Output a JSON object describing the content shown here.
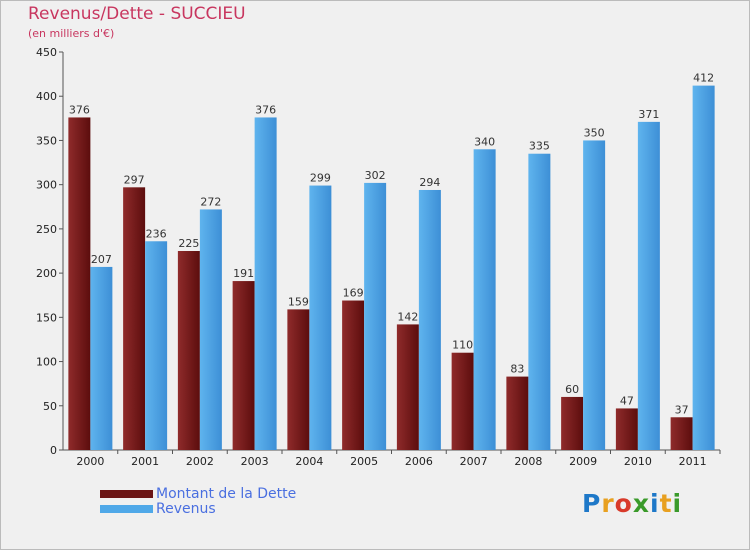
{
  "header": {
    "title": "Revenus/Dette - SUCCIEU",
    "subtitle": "(en milliers d'€)"
  },
  "chart_data": {
    "type": "bar",
    "categories": [
      "2000",
      "2001",
      "2002",
      "2003",
      "2004",
      "2005",
      "2006",
      "2007",
      "2008",
      "2009",
      "2010",
      "2011"
    ],
    "series": [
      {
        "name": "Montant de la Dette",
        "values": [
          376,
          297,
          225,
          191,
          159,
          169,
          142,
          110,
          83,
          60,
          47,
          37
        ],
        "color": "#7a1e1e"
      },
      {
        "name": "Revenus",
        "values": [
          207,
          236,
          272,
          376,
          299,
          302,
          294,
          340,
          335,
          350,
          371,
          412
        ],
        "color": "#4fa8e8"
      }
    ],
    "yticks": [
      0,
      50,
      100,
      150,
      200,
      250,
      300,
      350,
      400,
      450
    ],
    "ylim": [
      0,
      450
    ],
    "grid": false,
    "legend": "bottom-left"
  },
  "logo": {
    "letters": [
      "P",
      "r",
      "o",
      "x",
      "i",
      "t",
      "i"
    ],
    "colors": [
      "#1e78c8",
      "#e8a020",
      "#d83a2a",
      "#3a9a2a",
      "#1e78c8",
      "#e8a020",
      "#3a9a2a"
    ]
  }
}
